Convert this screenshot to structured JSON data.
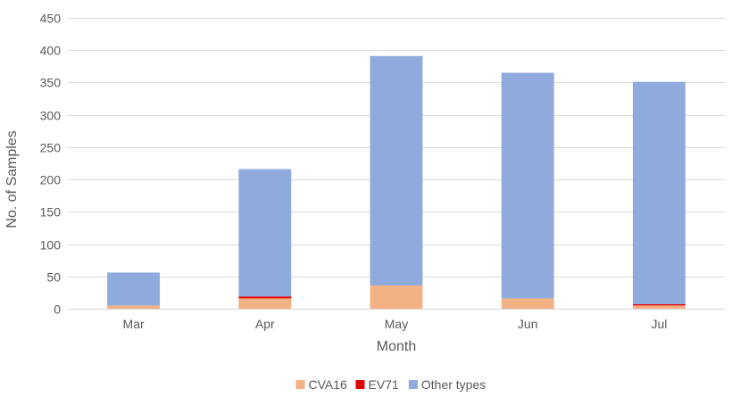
{
  "chart_data": {
    "type": "bar",
    "stacked": true,
    "title": "",
    "xlabel": "Month",
    "ylabel": "No. of Samples",
    "categories": [
      "Mar",
      "Apr",
      "May",
      "Jun",
      "Jul"
    ],
    "ylim": [
      0,
      450
    ],
    "yticks": [
      0,
      50,
      100,
      150,
      200,
      250,
      300,
      350,
      400,
      450
    ],
    "grid": true,
    "legend_position": "bottom",
    "series": [
      {
        "name": "CVA16",
        "color": "#f4b183",
        "values": [
          5,
          16,
          36,
          16,
          5
        ]
      },
      {
        "name": "EV71",
        "color": "#e00000",
        "values": [
          0,
          3,
          0,
          0,
          2
        ]
      },
      {
        "name": "Other types",
        "color": "#8faadc",
        "values": [
          51,
          197,
          355,
          349,
          344
        ]
      }
    ]
  }
}
